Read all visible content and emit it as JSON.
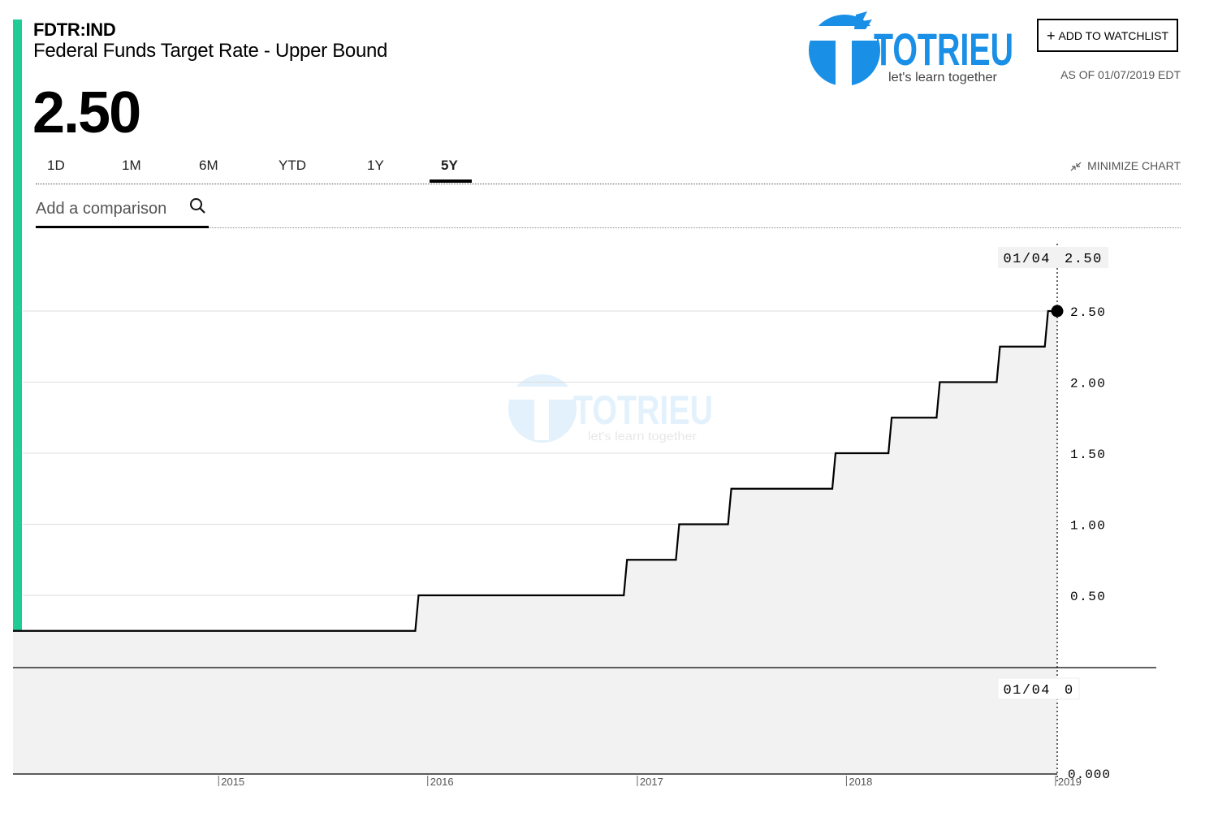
{
  "header": {
    "ticker": "FDTR:IND",
    "name": "Federal Funds Target Rate - Upper Bound",
    "price": "2.50",
    "watchlist_label": "ADD TO WATCHLIST",
    "as_of": "AS OF 01/07/2019 EDT"
  },
  "logo": {
    "name": "TOTRIEU",
    "tagline": "let's learn together"
  },
  "tabs": [
    {
      "label": "1D"
    },
    {
      "label": "1M"
    },
    {
      "label": "6M"
    },
    {
      "label": "YTD"
    },
    {
      "label": "1Y"
    },
    {
      "label": "5Y",
      "active": true
    }
  ],
  "minimize_label": "MINIMIZE CHART",
  "comparison": {
    "placeholder": "Add a comparison"
  },
  "colors": {
    "accent": "#1fcc96",
    "brand_blue": "#1a8fe6",
    "line": "#000000",
    "area": "#f2f2f2"
  },
  "chart_data": {
    "type": "line",
    "style": "step-area",
    "x_labels": [
      "2015",
      "2016",
      "2017",
      "2018",
      "2019"
    ],
    "y_ticks": [
      "0.50",
      "1.00",
      "1.50",
      "2.00",
      "2.50"
    ],
    "ylim": [
      0,
      2.75
    ],
    "series": [
      {
        "points": [
          {
            "x": "2014-01-07",
            "y": 0.25
          },
          {
            "x": "2015-12-16",
            "y": 0.5
          },
          {
            "x": "2016-12-14",
            "y": 0.75
          },
          {
            "x": "2017-03-15",
            "y": 1.0
          },
          {
            "x": "2017-06-14",
            "y": 1.25
          },
          {
            "x": "2017-12-13",
            "y": 1.5
          },
          {
            "x": "2018-03-21",
            "y": 1.75
          },
          {
            "x": "2018-06-13",
            "y": 2.0
          },
          {
            "x": "2018-09-26",
            "y": 2.25
          },
          {
            "x": "2018-12-19",
            "y": 2.5
          },
          {
            "x": "2019-01-04",
            "y": 2.5
          }
        ]
      }
    ],
    "crosshair": {
      "date_label": "01/04",
      "value_label": "2.50",
      "value_end": "2.50"
    },
    "lower_panel": {
      "date_label": "01/04",
      "value_label": "0",
      "y_tick": "0.000"
    },
    "grid": true
  }
}
